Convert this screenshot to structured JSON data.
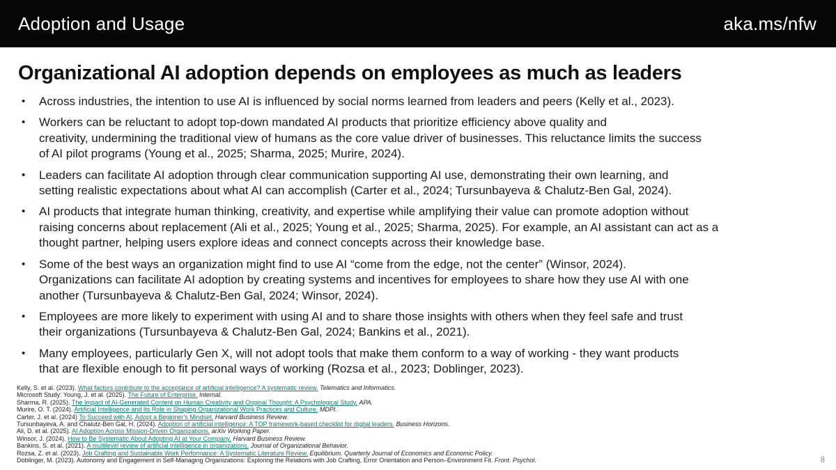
{
  "header": {
    "section_title": "Adoption and Usage",
    "link": "aka.ms/nfw"
  },
  "slide": {
    "title": "Organizational AI adoption depends on employees as much as leaders",
    "bullets": [
      "Across industries, the intention to use AI is influenced by social norms learned from leaders and peers (Kelly et al., 2023).",
      "Workers can be reluctant to adopt top-down mandated AI products that prioritize efficiency above quality and\ncreativity, undermining the traditional view of humans as the core value driver of businesses. This reluctance limits the success\nof AI pilot programs (Young et al., 2025; Sharma, 2025; Murire, 2024).",
      "Leaders can facilitate AI adoption through clear communication supporting AI use, demonstrating their own learning, and\nsetting realistic expectations about what AI can accomplish (Carter et al., 2024; Tursunbayeva & Chalutz-Ben Gal, 2024).",
      "AI products that integrate human thinking, creativity, and expertise while amplifying their value can promote adoption without\nraising concerns about replacement (Ali et al., 2025; Young et al., 2025; Sharma, 2025). For example, an AI assistant can act as a\nthought partner, helping users explore ideas and connect concepts across their knowledge base.",
      "Some of the best ways an organization might find to use AI “come from the edge, not the center” (Winsor, 2024).\nOrganizations can facilitate AI adoption by creating systems and incentives for employees to share how they use AI with one\nanother (Tursunbayeva & Chalutz-Ben Gal, 2024; Winsor, 2024).",
      "Employees are more likely to experiment with using AI and to share those insights with others when they feel safe and trust\ntheir organizations (Tursunbayeva & Chalutz-Ben Gal, 2024; Bankins et al., 2021).",
      "Many employees, particularly Gen X, will not adopt tools that make them conform to a way of working - they want products\nthat are flexible enough to fit personal ways of working (Rozsa et al., 2023; Doblinger, 2023)."
    ],
    "references": [
      {
        "pre": "Kelly, S. et al. (2023). ",
        "link": "What factors contribute to the acceptance of artificial intelligence? A systematic review.",
        "journal": " Telematics and Informatics."
      },
      {
        "pre": "Microsoft Study: Young, J. et al. (2025). ",
        "link": "The Future of Enterprise.",
        "journal": " Internal."
      },
      {
        "pre": "Sharma, R. (2025). ",
        "link": "The Impact of AI-Generated Content on Human Creativity and Original Thought: A Psychological Study.",
        "journal": " APA."
      },
      {
        "pre": "Murire, O. T. (2024). ",
        "link": "Artificial Intelligence and Its Role in Shaping Organizational Work Practices and Culture.",
        "journal": " MDPI."
      },
      {
        "pre": "Carter, J. et al. (2024) ",
        "link": "To Succeed with AI, Adopt a Beginner's Mindset.",
        "journal": " Harvard Business Review."
      },
      {
        "pre": "Tursunbayeva, A. and Chalutz-Ben Gal, H. (2024). ",
        "link": "Adoption of artificial intelligence: A TOP framework-based checklist for digital leaders.",
        "journal": " Business Horizons."
      },
      {
        "pre": "Ali, D. et al. (2025). ",
        "link": "AI Adoption Across Mission-Driven Organizations.",
        "journal": " arXiv Working Paper."
      },
      {
        "pre": "Winsor, J. (2024). ",
        "link": "How to Be Systematic About Adopting AI at Your Company.",
        "journal": " Harvard Business Review."
      },
      {
        "pre": "Bankins, S. et al. (2021). ",
        "link": "A multilevel review of artificial intelligence in organizations.",
        "journal": " Journal of Organizational Behavior."
      },
      {
        "pre": "Rozsa, Z. et al. (2023). ",
        "link": "Job Crafting and Sustainable Work Performance: A Systematic Literature Review.",
        "journal": " Equilibrium. Quarterly Journal of Economics and Economic Policy."
      },
      {
        "pre": "Doblinger, M. (2023). Autonomy and Engagement in Self-Managing Organizations: Exploring the Relations with Job Crafting, Error Orientation and Person–Environment Fit. ",
        "link": "",
        "journal": "Front. Psychol."
      }
    ],
    "page_number": "8"
  },
  "colors": {
    "header_bg": "#060606",
    "link_teal": "#0e7e6b"
  }
}
